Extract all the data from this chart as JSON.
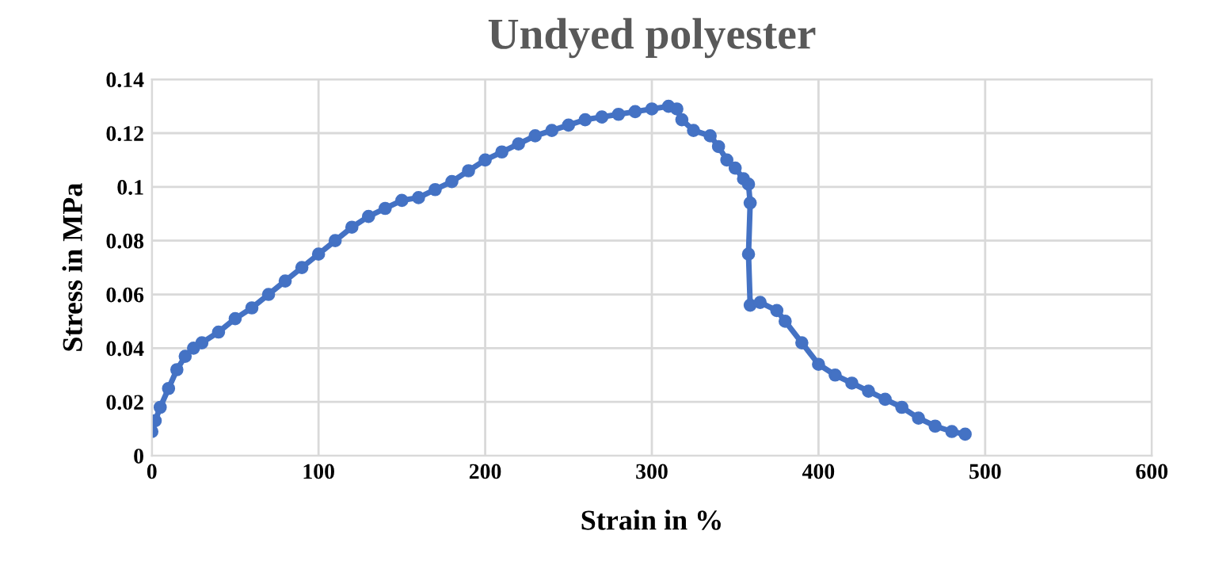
{
  "chart_data": {
    "type": "line",
    "title": "Undyed polyester",
    "xlabel": "Strain in %",
    "ylabel": "Stress in MPa",
    "xlim": [
      0,
      600
    ],
    "xticks": [
      0,
      100,
      200,
      300,
      400,
      500,
      600
    ],
    "ylim": [
      0,
      0.14
    ],
    "yticks": [
      0,
      0.02,
      0.04,
      0.06,
      0.08,
      0.1,
      0.12,
      0.14
    ],
    "grid": true,
    "marker": "circle",
    "line_style": "solid",
    "series": [
      {
        "color": "#4472c4",
        "x": [
          0,
          2,
          5,
          10,
          15,
          20,
          25,
          30,
          40,
          50,
          60,
          70,
          80,
          90,
          100,
          110,
          120,
          130,
          140,
          150,
          160,
          170,
          180,
          190,
          200,
          210,
          220,
          230,
          240,
          250,
          260,
          270,
          280,
          290,
          300,
          310,
          315,
          318,
          325,
          335,
          340,
          345,
          350,
          355,
          358,
          359,
          358,
          359,
          365,
          375,
          380,
          390,
          400,
          410,
          420,
          430,
          440,
          450,
          460,
          470,
          480,
          488
        ],
        "values": [
          0.009,
          0.013,
          0.018,
          0.025,
          0.032,
          0.037,
          0.04,
          0.042,
          0.046,
          0.051,
          0.055,
          0.06,
          0.065,
          0.07,
          0.075,
          0.08,
          0.085,
          0.089,
          0.092,
          0.095,
          0.096,
          0.099,
          0.102,
          0.106,
          0.11,
          0.113,
          0.116,
          0.119,
          0.121,
          0.123,
          0.125,
          0.126,
          0.127,
          0.128,
          0.129,
          0.13,
          0.129,
          0.125,
          0.121,
          0.119,
          0.115,
          0.11,
          0.107,
          0.103,
          0.101,
          0.094,
          0.075,
          0.056,
          0.057,
          0.054,
          0.05,
          0.042,
          0.034,
          0.03,
          0.027,
          0.024,
          0.021,
          0.018,
          0.014,
          0.011,
          0.009,
          0.008
        ]
      }
    ]
  }
}
